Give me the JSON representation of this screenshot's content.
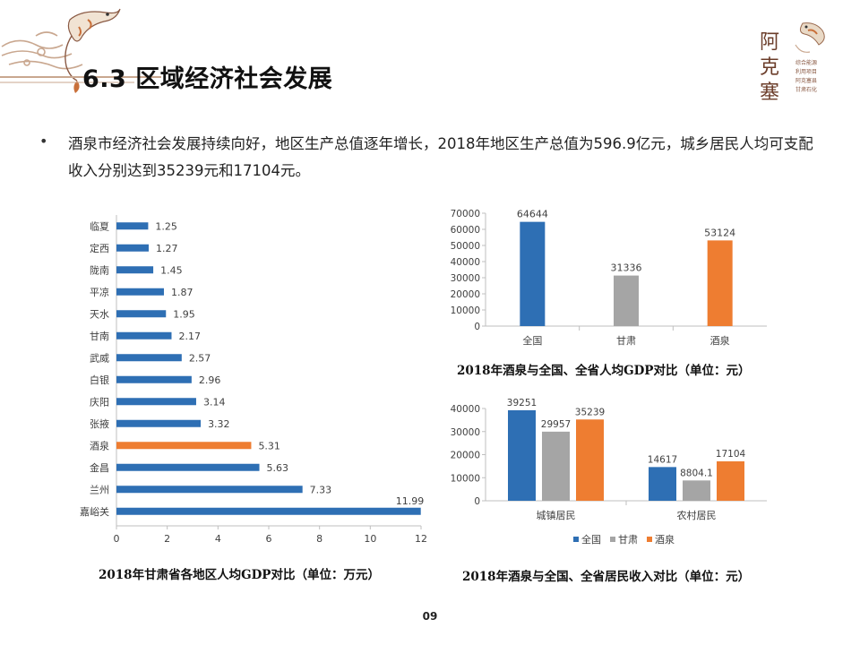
{
  "page": {
    "title": "6.3 区域经济社会发展",
    "bullet": "酒泉市经济社会发展持续向好，地区生产总值逐年增长，2018年地区生产总值为596.9亿元，城乡居民人均可支配收入分别达到35239元和17104元。",
    "page_number": "09",
    "logo_title": "阿克塞",
    "logo_subtitle": "综合能源利用项目阿克塞县甘肃石油化工"
  },
  "colors": {
    "national": "#2e6fb4",
    "province": "#a5a5a5",
    "jiuquan": "#ee7d31",
    "axis": "#bfbfbf",
    "text": "#404040"
  },
  "chart_data": [
    {
      "type": "bar",
      "orientation": "horizontal",
      "caption": "2018年甘肃省各地区人均GDP对比（单位：万元）",
      "categories": [
        "临夏",
        "定西",
        "陇南",
        "平凉",
        "天水",
        "甘南",
        "武威",
        "白银",
        "庆阳",
        "张掖",
        "酒泉",
        "金昌",
        "兰州",
        "嘉峪关"
      ],
      "values": [
        1.25,
        1.27,
        1.45,
        1.87,
        1.95,
        2.17,
        2.57,
        2.96,
        3.14,
        3.32,
        5.31,
        5.63,
        7.33,
        11.99
      ],
      "highlight": "酒泉",
      "xlim": [
        0,
        12
      ],
      "xticks": [
        0,
        2,
        4,
        6,
        8,
        10,
        12
      ],
      "grid": false
    },
    {
      "type": "bar",
      "caption": "2018年酒泉与全国、全省人均GDP对比（单位：元）",
      "categories": [
        "全国",
        "甘肃",
        "酒泉"
      ],
      "values": [
        64644,
        31336,
        53124
      ],
      "bar_colors": [
        "#2e6fb4",
        "#a5a5a5",
        "#ee7d31"
      ],
      "ylim": [
        0,
        70000
      ],
      "yticks": [
        0,
        10000,
        20000,
        30000,
        40000,
        50000,
        60000,
        70000
      ],
      "grid": false
    },
    {
      "type": "bar",
      "caption": "2018年酒泉与全国、全省居民收入对比（单位：元）",
      "categories": [
        "城镇居民",
        "农村居民"
      ],
      "series": [
        {
          "name": "全国",
          "values": [
            39251,
            14617
          ],
          "labels": [
            "39251",
            "14617"
          ],
          "color": "#2e6fb4"
        },
        {
          "name": "甘肃",
          "values": [
            29957,
            8804.1
          ],
          "labels": [
            "29957",
            "8804.1"
          ],
          "color": "#a5a5a5"
        },
        {
          "name": "酒泉",
          "values": [
            35239,
            17104
          ],
          "labels": [
            "35239",
            "17104"
          ],
          "color": "#ee7d31"
        }
      ],
      "ylim": [
        0,
        40000
      ],
      "yticks": [
        0,
        10000,
        20000,
        30000,
        40000
      ],
      "legend_position": "bottom",
      "grid": false
    }
  ]
}
